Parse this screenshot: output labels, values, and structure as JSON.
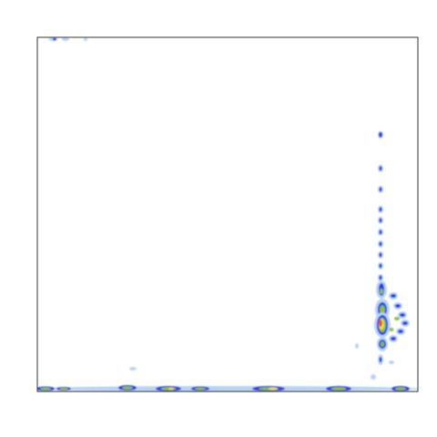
{
  "chart_data": {
    "type": "density"
  }
}
